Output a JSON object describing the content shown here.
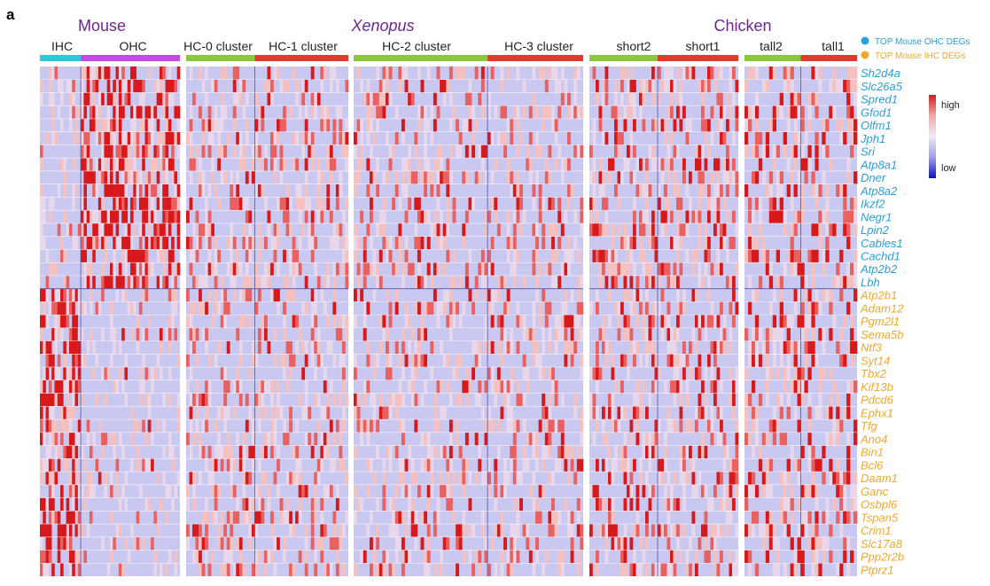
{
  "panel_label": "a",
  "chart_data": {
    "type": "heatmap",
    "species": [
      {
        "label": "Mouse",
        "italic": false
      },
      {
        "label": "Xenopus",
        "italic": true
      },
      {
        "label": "Chicken",
        "italic": false
      }
    ],
    "blocks": [
      {
        "clusters": [
          {
            "name": "IHC",
            "color": "#2ec8d6",
            "cells": 14
          },
          {
            "name": "OHC",
            "color": "#c24ae0",
            "cells": 34
          }
        ]
      },
      {
        "clusters": [
          {
            "name": "HC-0 cluster",
            "color": "#8cc63f",
            "cells": 22
          },
          {
            "name": "HC-1 cluster",
            "color": "#e03a2f",
            "cells": 30
          }
        ]
      },
      {
        "clusters": [
          {
            "name": "HC-2 cluster",
            "color": "#8cc63f",
            "cells": 42
          },
          {
            "name": "HC-3 cluster",
            "color": "#e03a2f",
            "cells": 30
          }
        ]
      },
      {
        "clusters": [
          {
            "name": "short2",
            "color": "#8cc63f",
            "cells": 22
          },
          {
            "name": "short1",
            "color": "#e03a2f",
            "cells": 26
          }
        ]
      },
      {
        "clusters": [
          {
            "name": "tall2",
            "color": "#8cc63f",
            "cells": 16
          },
          {
            "name": "tall1",
            "color": "#e03a2f",
            "cells": 16
          }
        ]
      }
    ],
    "ohc_genes": [
      "Sh2d4a",
      "Slc26a5",
      "Spred1",
      "Gfod1",
      "Olfm1",
      "Jph1",
      "Sri",
      "Atp8a1",
      "Dner",
      "Atp8a2",
      "Ikzf2",
      "Negr1",
      "Lpin2",
      "Cables1",
      "Cachd1",
      "Atp2b2",
      "Lbh"
    ],
    "ihc_genes": [
      "Atp2b1",
      "Adam12",
      "Pgm2l1",
      "Sema5b",
      "Ntf3",
      "Syt14",
      "Tbx2",
      "Kif13b",
      "Pdcd6",
      "Ephx1",
      "Tfg",
      "Ano4",
      "Bin1",
      "Bcl6",
      "Daam1",
      "Ganc",
      "Osbpl6",
      "Tspan5",
      "Crim1",
      "Slc17a8",
      "Ppp2r2b",
      "Ptprz1"
    ],
    "legend": [
      {
        "label": "TOP Mouse OHC DEGs",
        "color": "#2a9fd8"
      },
      {
        "label": "TOP Mouse IHC DEGs",
        "color": "#f0a830"
      }
    ],
    "color_scale": {
      "high_label": "high",
      "low_label": "low",
      "high": "#d7191c",
      "mid": "#c8c8f0",
      "low": "#1010c8"
    }
  }
}
